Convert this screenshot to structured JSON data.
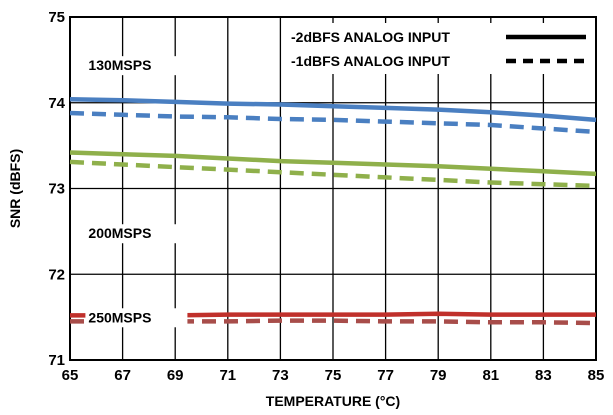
{
  "chart_data": {
    "type": "line",
    "xlabel": "TEMPERATURE (°C)",
    "ylabel": "SNR (dBFS)",
    "xlim": [
      65,
      85
    ],
    "ylim": [
      71,
      75
    ],
    "x_ticks": [
      65,
      67,
      69,
      71,
      73,
      75,
      77,
      79,
      81,
      83,
      85
    ],
    "y_ticks": [
      71,
      72,
      73,
      74,
      75
    ],
    "grid": true,
    "legend_position": "top-right",
    "legend": [
      {
        "label": "-2dBFS ANALOG INPUT",
        "dash": "solid"
      },
      {
        "label": "-1dBFS ANALOG INPUT",
        "dash": "dashed"
      }
    ],
    "annotations": [
      {
        "text": "130MSPS",
        "x": 65.7,
        "y": 74.38
      },
      {
        "text": "200MSPS",
        "x": 65.7,
        "y": 72.42
      },
      {
        "text": "250MSPS",
        "x": 65.7,
        "y": 71.44
      }
    ],
    "series": [
      {
        "group": "130MSPS",
        "dash": "solid",
        "color": "#4a7fc1",
        "x": [
          65,
          67,
          69,
          71,
          73,
          75,
          77,
          79,
          81,
          83,
          85
        ],
        "y": [
          74.04,
          74.03,
          74.01,
          73.99,
          73.98,
          73.96,
          73.94,
          73.92,
          73.89,
          73.85,
          73.8
        ]
      },
      {
        "group": "130MSPS",
        "dash": "dashed",
        "color": "#4a7fc1",
        "x": [
          65,
          67,
          69,
          71,
          73,
          75,
          77,
          79,
          81,
          83,
          85
        ],
        "y": [
          73.88,
          73.86,
          73.84,
          73.83,
          73.81,
          73.8,
          73.78,
          73.76,
          73.74,
          73.7,
          73.66
        ]
      },
      {
        "group": "200MSPS",
        "dash": "solid",
        "color": "#8fb04b",
        "x": [
          65,
          67,
          69,
          71,
          73,
          75,
          77,
          79,
          81,
          83,
          85
        ],
        "y": [
          73.42,
          73.4,
          73.38,
          73.35,
          73.32,
          73.3,
          73.28,
          73.26,
          73.23,
          73.2,
          73.17
        ]
      },
      {
        "group": "200MSPS",
        "dash": "dashed",
        "color": "#8fb04b",
        "x": [
          65,
          67,
          69,
          71,
          73,
          75,
          77,
          79,
          81,
          83,
          85
        ],
        "y": [
          73.31,
          73.28,
          73.25,
          73.22,
          73.19,
          73.16,
          73.13,
          73.1,
          73.07,
          73.05,
          73.03
        ]
      },
      {
        "group": "250MSPS",
        "dash": "solid",
        "color": "#c0302b",
        "x": [
          65,
          67,
          69,
          71,
          73,
          75,
          77,
          79,
          81,
          83,
          85
        ],
        "y": [
          71.52,
          71.52,
          71.52,
          71.53,
          71.53,
          71.53,
          71.53,
          71.54,
          71.53,
          71.53,
          71.53
        ]
      },
      {
        "group": "250MSPS",
        "dash": "dashed",
        "color": "#a84d4a",
        "x": [
          65,
          67,
          69,
          71,
          73,
          75,
          77,
          79,
          81,
          83,
          85
        ],
        "y": [
          71.45,
          71.45,
          71.45,
          71.45,
          71.46,
          71.46,
          71.45,
          71.45,
          71.44,
          71.44,
          71.43
        ]
      }
    ]
  }
}
